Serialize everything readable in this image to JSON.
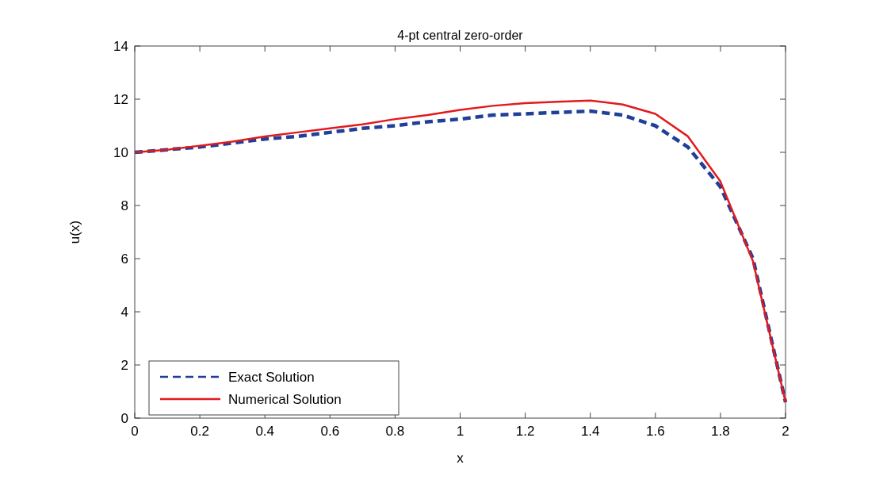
{
  "chart_data": {
    "type": "line",
    "title": "4-pt central zero-order",
    "xlabel": "x",
    "ylabel": "u(x)",
    "x": [
      0,
      0.1,
      0.2,
      0.3,
      0.4,
      0.5,
      0.6,
      0.7,
      0.8,
      0.9,
      1.0,
      1.1,
      1.2,
      1.3,
      1.4,
      1.5,
      1.6,
      1.7,
      1.8,
      1.9,
      2.0
    ],
    "series": [
      {
        "name": "Exact Solution",
        "color": "#1f3f99",
        "line_style": "dashed",
        "values": [
          10,
          10.1,
          10.2,
          10.35,
          10.5,
          10.6,
          10.75,
          10.9,
          11.0,
          11.15,
          11.25,
          11.4,
          11.45,
          11.5,
          11.55,
          11.4,
          11.0,
          10.2,
          8.7,
          6.0,
          0.6
        ]
      },
      {
        "name": "Numerical Solution",
        "color": "#e31a1c",
        "line_style": "solid",
        "values": [
          10,
          10.1,
          10.25,
          10.4,
          10.6,
          10.75,
          10.9,
          11.05,
          11.25,
          11.4,
          11.6,
          11.75,
          11.85,
          11.9,
          11.95,
          11.8,
          11.45,
          10.6,
          8.9,
          5.9,
          0.6
        ]
      }
    ],
    "xlim": [
      0,
      2
    ],
    "xticks": [
      0,
      0.2,
      0.4,
      0.6,
      0.8,
      1,
      1.2,
      1.4,
      1.6,
      1.8,
      2
    ],
    "ylim": [
      0,
      14
    ],
    "yticks": [
      0,
      2,
      4,
      6,
      8,
      10,
      12,
      14
    ],
    "grid": false,
    "legend": "bottom left",
    "marker": "none"
  }
}
